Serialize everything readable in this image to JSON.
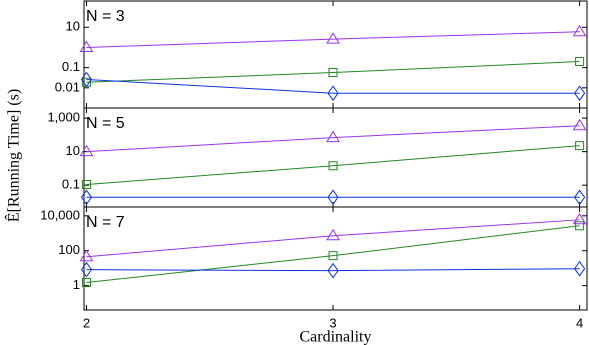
{
  "chart_data": [
    {
      "type": "line",
      "annotation": "N = 3",
      "x": [
        2,
        3,
        4
      ],
      "xlim": [
        1.99,
        4.03
      ],
      "log_y": true,
      "ylim": [
        0.001,
        200
      ],
      "yticks": [
        {
          "value": 0.01,
          "label": "0.01"
        },
        {
          "value": 0.1,
          "label": "0.1"
        },
        10
      ],
      "series": [
        {
          "color": "#9933ee",
          "marker": "triangle",
          "values": [
            1,
            2.6,
            6
          ]
        },
        {
          "color": "#228822",
          "marker": "square",
          "values": [
            0.019,
            0.057,
            0.2
          ]
        },
        {
          "color": "#1133dd",
          "marker": "diamond",
          "values": [
            0.026,
            0.0054,
            0.0054
          ]
        }
      ]
    },
    {
      "type": "line",
      "annotation": "N = 5",
      "ylabel": "Ê[Running Time] (s)",
      "x": [
        2,
        3,
        4
      ],
      "xlim": [
        1.99,
        4.03
      ],
      "log_y": true,
      "ylim": [
        0.005,
        4000
      ],
      "yticks": [
        {
          "value": 0.1,
          "label": "0.1"
        },
        10,
        {
          "value": 1000,
          "label": "1,000"
        }
      ],
      "series": [
        {
          "color": "#9933ee",
          "marker": "triangle",
          "values": [
            10,
            69,
            350
          ]
        },
        {
          "color": "#228822",
          "marker": "square",
          "values": [
            0.11,
            1.45,
            23
          ]
        },
        {
          "color": "#1133dd",
          "marker": "diamond",
          "values": [
            0.019,
            0.019,
            0.019
          ]
        }
      ]
    },
    {
      "type": "line",
      "annotation": "N = 7",
      "xlabel": "Cardinality",
      "x": [
        2,
        3,
        4
      ],
      "xlim": [
        1.99,
        4.03
      ],
      "xticks": [
        2,
        3,
        4
      ],
      "log_y": true,
      "ylim": [
        0.04,
        32000
      ],
      "yticks": [
        1,
        100,
        {
          "value": 10000,
          "label": "10,000"
        }
      ],
      "series": [
        {
          "color": "#9933ee",
          "marker": "triangle",
          "values": [
            45,
            720,
            5900
          ]
        },
        {
          "color": "#228822",
          "marker": "square",
          "values": [
            1.5,
            52,
            2700
          ]
        },
        {
          "color": "#1133dd",
          "marker": "diamond",
          "values": [
            8.2,
            7.2,
            9.3
          ]
        }
      ]
    }
  ]
}
